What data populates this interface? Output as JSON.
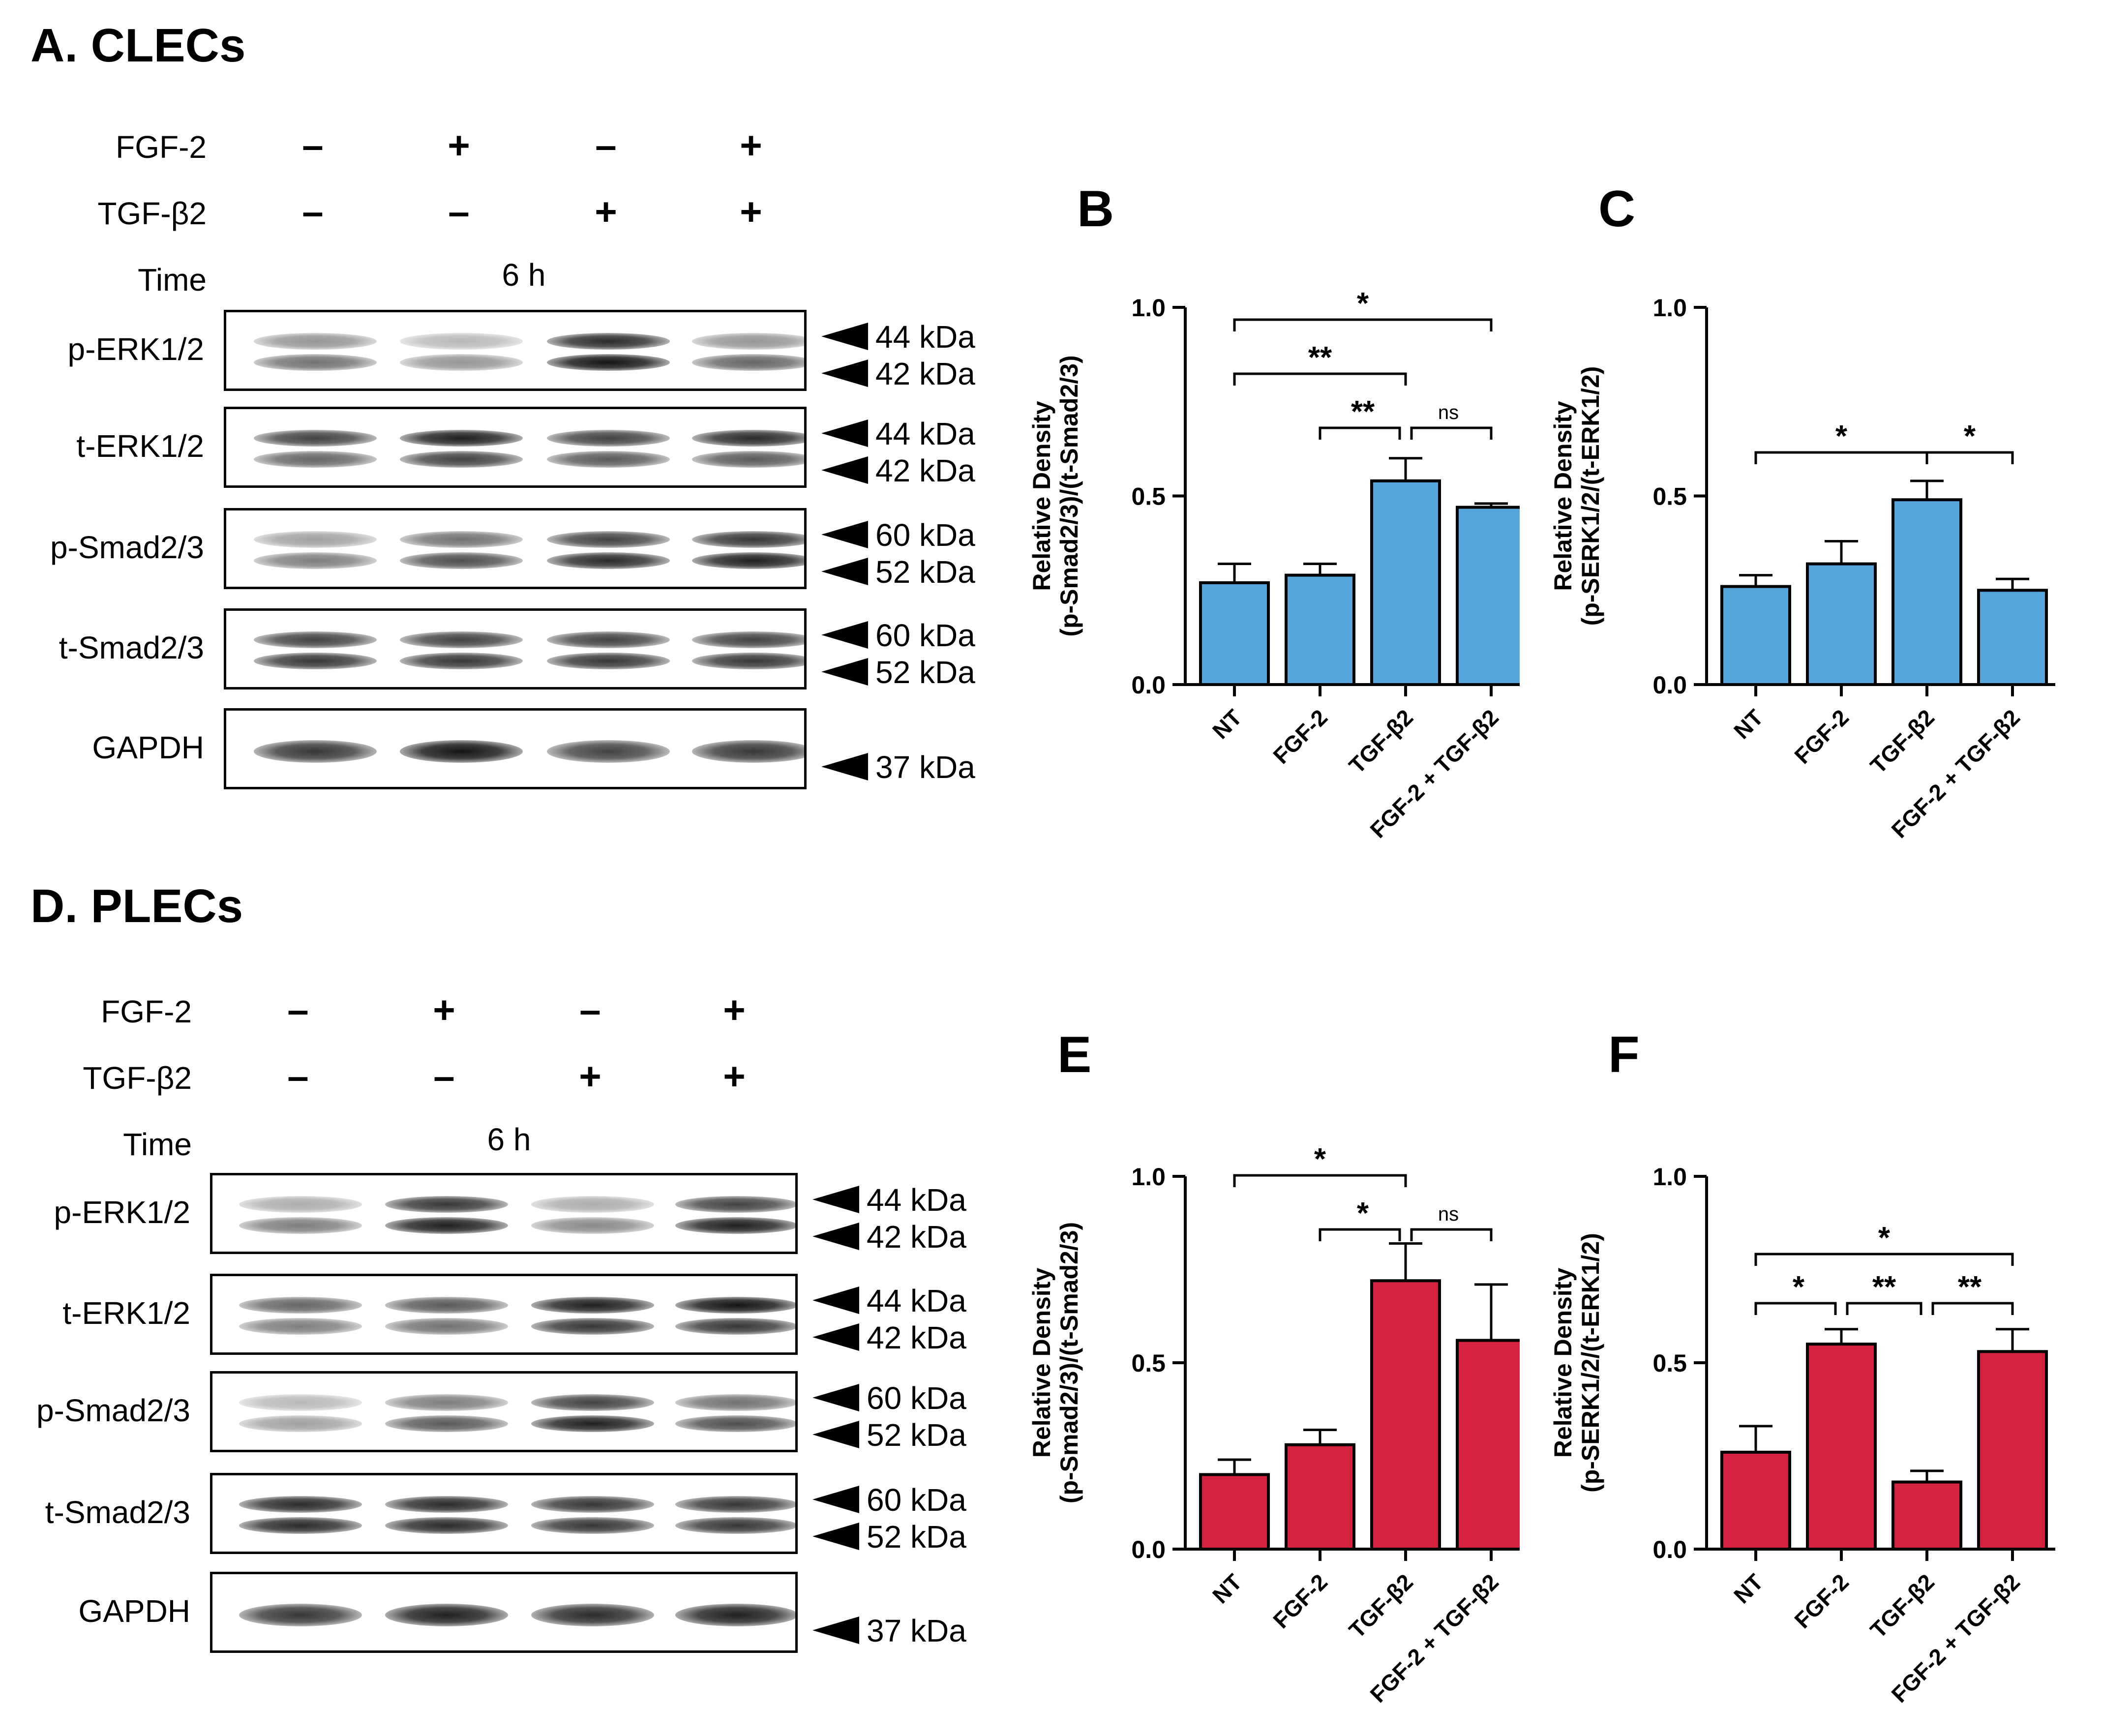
{
  "panels": {
    "A": {
      "title": "A. CLECs",
      "conditions": {
        "rows": [
          {
            "label": "FGF-2",
            "values": [
              "–",
              "+",
              "–",
              "+"
            ]
          },
          {
            "label": "TGF-β2",
            "values": [
              "–",
              "–",
              "+",
              "+"
            ]
          }
        ],
        "time_label": "Time",
        "time_value": "6 h"
      },
      "blots": [
        {
          "label": "p-ERK1/2",
          "markers": [
            "44 kDa",
            "42 kDa"
          ],
          "intensity": [
            [
              0.45,
              0.6
            ],
            [
              0.3,
              0.45
            ],
            [
              0.9,
              1.0
            ],
            [
              0.45,
              0.65
            ]
          ]
        },
        {
          "label": "t-ERK1/2",
          "markers": [
            "44 kDa",
            "42 kDa"
          ],
          "intensity": [
            [
              0.8,
              0.65
            ],
            [
              0.95,
              0.8
            ],
            [
              0.8,
              0.7
            ],
            [
              0.9,
              0.7
            ]
          ]
        },
        {
          "label": "p-Smad2/3",
          "markers": [
            "60 kDa",
            "52 kDa"
          ],
          "intensity": [
            [
              0.4,
              0.55
            ],
            [
              0.6,
              0.75
            ],
            [
              0.8,
              0.9
            ],
            [
              0.85,
              0.95
            ]
          ]
        },
        {
          "label": "t-Smad2/3",
          "markers": [
            "60 kDa",
            "52 kDa"
          ],
          "intensity": [
            [
              0.8,
              0.85
            ],
            [
              0.8,
              0.85
            ],
            [
              0.8,
              0.85
            ],
            [
              0.8,
              0.85
            ]
          ]
        },
        {
          "label": "GAPDH",
          "markers": [
            "37 kDa"
          ],
          "intensity": [
            [
              0.85
            ],
            [
              1.0
            ],
            [
              0.8
            ],
            [
              0.85
            ]
          ]
        }
      ]
    },
    "D": {
      "title": "D. PLECs",
      "conditions": {
        "rows": [
          {
            "label": "FGF-2",
            "values": [
              "–",
              "+",
              "–",
              "+"
            ]
          },
          {
            "label": "TGF-β2",
            "values": [
              "–",
              "–",
              "+",
              "+"
            ]
          }
        ],
        "time_label": "Time",
        "time_value": "6 h"
      },
      "blots": [
        {
          "label": "p-ERK1/2",
          "markers": [
            "44 kDa",
            "42 kDa"
          ],
          "intensity": [
            [
              0.35,
              0.55
            ],
            [
              0.85,
              0.95
            ],
            [
              0.35,
              0.5
            ],
            [
              0.8,
              0.95
            ]
          ]
        },
        {
          "label": "t-ERK1/2",
          "markers": [
            "44 kDa",
            "42 kDa"
          ],
          "intensity": [
            [
              0.65,
              0.55
            ],
            [
              0.7,
              0.6
            ],
            [
              0.95,
              0.85
            ],
            [
              1.0,
              0.85
            ]
          ]
        },
        {
          "label": "p-Smad2/3",
          "markers": [
            "60 kDa",
            "52 kDa"
          ],
          "intensity": [
            [
              0.3,
              0.4
            ],
            [
              0.55,
              0.7
            ],
            [
              0.8,
              0.95
            ],
            [
              0.6,
              0.75
            ]
          ]
        },
        {
          "label": "t-Smad2/3",
          "markers": [
            "60 kDa",
            "52 kDa"
          ],
          "intensity": [
            [
              0.9,
              0.9
            ],
            [
              0.9,
              0.9
            ],
            [
              0.85,
              0.85
            ],
            [
              0.85,
              0.85
            ]
          ]
        },
        {
          "label": "GAPDH",
          "markers": [
            "37 kDa"
          ],
          "intensity": [
            [
              0.85
            ],
            [
              0.95
            ],
            [
              0.9
            ],
            [
              0.95
            ]
          ]
        }
      ]
    }
  },
  "chart_data": [
    {
      "type": "bar",
      "letter": "B",
      "categories": [
        "NT",
        "FGF-2",
        "TGF-β2",
        "FGF-2 + TGF-β2"
      ],
      "values": [
        0.27,
        0.29,
        0.54,
        0.47
      ],
      "errors": [
        0.05,
        0.03,
        0.06,
        0.01
      ],
      "ylabel_lines": [
        "Relative Density",
        "(p-Smad2/3)/(t-Smad2/3)"
      ],
      "ylim": [
        0,
        1.0
      ],
      "yticks": [
        "0.0",
        "0.5",
        "1.0"
      ],
      "color": "#56a6dc",
      "significance": [
        {
          "from": 0,
          "to": 3,
          "label": "*",
          "level": 0
        },
        {
          "from": 0,
          "to": 2,
          "label": "**",
          "level": 1
        },
        {
          "from": 1,
          "to": 2,
          "label": "**",
          "level": 2
        },
        {
          "from": 2,
          "to": 3,
          "label": "ns",
          "level": 2
        }
      ]
    },
    {
      "type": "bar",
      "letter": "C",
      "categories": [
        "NT",
        "FGF-2",
        "TGF-β2",
        "FGF-2 + TGF-β2"
      ],
      "values": [
        0.26,
        0.32,
        0.49,
        0.25
      ],
      "errors": [
        0.03,
        0.06,
        0.05,
        0.03
      ],
      "ylabel_lines": [
        "Relative Density",
        "(p-SERK1/2/(t-ERK1/2)"
      ],
      "ylim": [
        0,
        1.0
      ],
      "yticks": [
        "0.0",
        "0.5",
        "1.0"
      ],
      "color": "#56a6dc",
      "significance": [
        {
          "from": 0,
          "to": 2,
          "label": "*",
          "level": 0
        },
        {
          "from": 2,
          "to": 3,
          "label": "*",
          "level": 0
        }
      ]
    },
    {
      "type": "bar",
      "letter": "E",
      "categories": [
        "NT",
        "FGF-2",
        "TGF-β2",
        "FGF-2 + TGF-β2"
      ],
      "values": [
        0.2,
        0.28,
        0.72,
        0.56
      ],
      "errors": [
        0.04,
        0.04,
        0.1,
        0.15
      ],
      "ylabel_lines": [
        "Relative Density",
        "(p-Smad2/3)/(t-Smad2/3)"
      ],
      "ylim": [
        0,
        1.0
      ],
      "yticks": [
        "0.0",
        "0.5",
        "1.0"
      ],
      "color": "#d62240",
      "significance": [
        {
          "from": 0,
          "to": 2,
          "label": "*",
          "level": 0
        },
        {
          "from": 1,
          "to": 2,
          "label": "*",
          "level": 1
        },
        {
          "from": 2,
          "to": 3,
          "label": "ns",
          "level": 1
        }
      ]
    },
    {
      "type": "bar",
      "letter": "F",
      "categories": [
        "NT",
        "FGF-2",
        "TGF-β2",
        "FGF-2 + TGF-β2"
      ],
      "values": [
        0.26,
        0.55,
        0.18,
        0.53
      ],
      "errors": [
        0.07,
        0.04,
        0.03,
        0.06
      ],
      "ylabel_lines": [
        "Relative Density",
        "(p-SERK1/2/(t-ERK1/2)"
      ],
      "ylim": [
        0,
        1.0
      ],
      "yticks": [
        "0.0",
        "0.5",
        "1.0"
      ],
      "color": "#d62240",
      "significance": [
        {
          "from": 0,
          "to": 3,
          "label": "*",
          "level": 0
        },
        {
          "from": 0,
          "to": 1,
          "label": "*",
          "level": 1
        },
        {
          "from": 1,
          "to": 2,
          "label": "**",
          "level": 1
        },
        {
          "from": 2,
          "to": 3,
          "label": "**",
          "level": 1
        }
      ]
    }
  ]
}
